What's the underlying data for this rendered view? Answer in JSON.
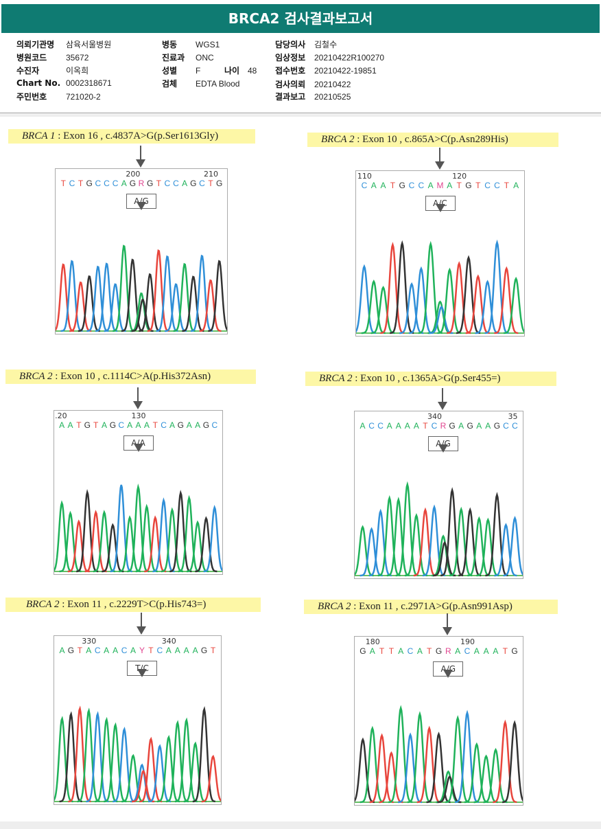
{
  "title": "BRCA2 검사결과보고서",
  "info": {
    "col1": [
      {
        "k": "의뢰기관명",
        "v": "삼육서울병원"
      },
      {
        "k": "병원코드",
        "v": "35672"
      },
      {
        "k": "수진자",
        "v": "이옥희"
      },
      {
        "k": "Chart No.",
        "v": "0002318671"
      },
      {
        "k": "주민번호",
        "v": "721020-2"
      }
    ],
    "col2": [
      {
        "k": "병동",
        "v": "WGS1"
      },
      {
        "k": "진료과",
        "v": "ONC"
      },
      {
        "k": "성별",
        "v": "F"
      },
      {
        "k": "검체",
        "v": "EDTA Blood"
      }
    ],
    "age": {
      "k": "나이",
      "v": "48"
    },
    "col3": [
      {
        "k": "담당의사",
        "v": "김철수"
      },
      {
        "k": "임상정보",
        "v": "20210422R100270"
      },
      {
        "k": "접수번호",
        "v": "20210422-19851"
      },
      {
        "k": "검사의뢰",
        "v": "20210422"
      },
      {
        "k": "결과보고",
        "v": "20210525"
      }
    ]
  },
  "base_colors": {
    "A": "#1fb25a",
    "C": "#2f8fd8",
    "G": "#333333",
    "T": "#e8453c",
    "R": "#e0448f",
    "M": "#e0448f",
    "Y": "#e0448f"
  },
  "panels": [
    {
      "gene": "BRCA 1",
      "variant": "Exon 16 , c.4837A>G(p.Ser1613Gly)",
      "sequence": "TCTGCCCAGRGTCCAGCTG",
      "variant_index": 9,
      "genotype": "A/G",
      "positions": [
        {
          "label": "200",
          "index": 8
        },
        {
          "label": "210",
          "index": 17
        }
      ]
    },
    {
      "gene": "BRCA 2",
      "variant": "Exon 10 , c.865A>C(p.Asn289His)",
      "sequence": "CAATGCCAMATGTCCTA",
      "variant_index": 8,
      "genotype": "A/C",
      "positions": [
        {
          "label": "110",
          "index": 0
        },
        {
          "label": "120",
          "index": 10
        }
      ]
    },
    {
      "gene": "BRCA 2",
      "variant": "Exon 10 , c.1114C>A(p.His372Asn)",
      "sequence": "AATGTAGCAAATCAGAAGC",
      "variant_index": 9,
      "genotype": "A/A",
      "positions": [
        {
          "label": ".20",
          "index": 0
        },
        {
          "label": "130",
          "index": 9
        }
      ]
    },
    {
      "gene": "BRCA 2",
      "variant": "Exon 10 , c.1365A>G(p.Ser455=)",
      "sequence": "ACCAAAATCRGAGAAGCC",
      "variant_index": 9,
      "genotype": "A/G",
      "positions": [
        {
          "label": "340",
          "index": 8
        },
        {
          "label": "35",
          "index": 17
        }
      ]
    },
    {
      "gene": "BRCA 2",
      "variant": "Exon 11 , c.2229T>C(p.His743=)",
      "sequence": "AGTACAACAYTCAAAAGT",
      "variant_index": 9,
      "genotype": "T/C",
      "positions": [
        {
          "label": "330",
          "index": 3
        },
        {
          "label": "340",
          "index": 12
        }
      ]
    },
    {
      "gene": "BRCA 2",
      "variant": "Exon 11 , c.2971A>G(p.Asn991Asp)",
      "sequence": "GATTACATGRACAAATG",
      "variant_index": 9,
      "genotype": "A/G",
      "positions": [
        {
          "label": "180",
          "index": 1
        },
        {
          "label": "190",
          "index": 11
        }
      ]
    }
  ]
}
